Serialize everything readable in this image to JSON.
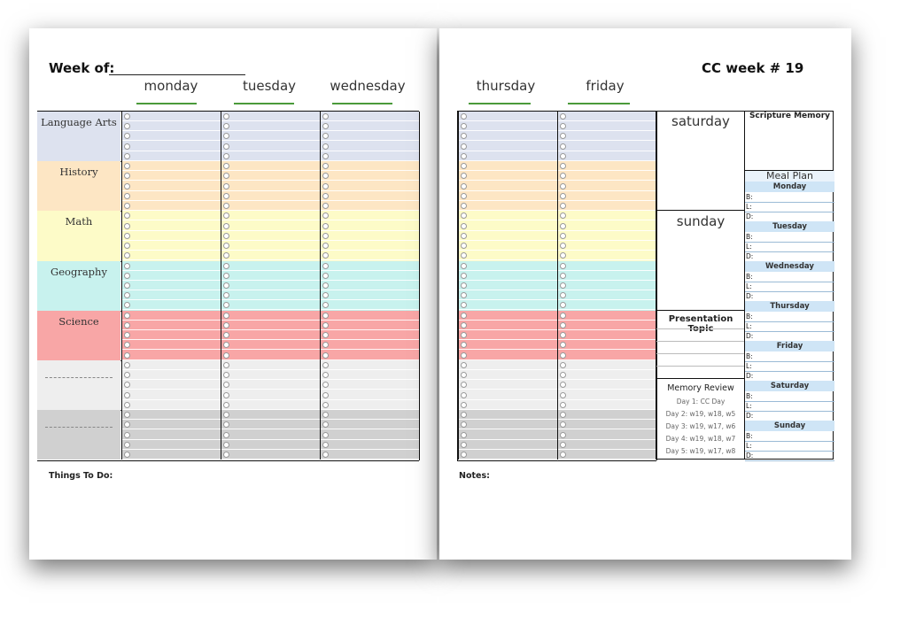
{
  "left_page": {
    "week_of_label": "Week of:",
    "days": [
      "monday",
      "tuesday",
      "wednesday"
    ],
    "subjects": [
      {
        "label": "Language Arts",
        "color": "#dde2ef"
      },
      {
        "label": "History",
        "color": "#fde6c4"
      },
      {
        "label": "Math",
        "color": "#fdfbc8"
      },
      {
        "label": "Geography",
        "color": "#c8f2ee"
      },
      {
        "label": "Science",
        "color": "#f8a6a6"
      },
      {
        "label": "",
        "color": "#eeeeee"
      },
      {
        "label": "",
        "color": "#d0d0d0"
      }
    ],
    "things_to_do_label": "Things To Do:"
  },
  "right_page": {
    "cc_week_label": "CC week # 19",
    "days": [
      "thursday",
      "friday"
    ],
    "saturday_label": "saturday",
    "sunday_label": "sunday",
    "scripture_memory_label": "Scripture Memory",
    "presentation_topic_label": "Presentation Topic",
    "memory_review": {
      "label": "Memory Review",
      "items": [
        "Day 1: CC Day",
        "Day 2: w19, w18, w5",
        "Day 3: w19, w17, w6",
        "Day 4: w19, w18, w7",
        "Day 5: w19, w17, w8"
      ]
    },
    "meal_plan": {
      "label": "Meal Plan",
      "days": [
        "Monday",
        "Tuesday",
        "Wednesday",
        "Thursday",
        "Friday",
        "Saturday",
        "Sunday"
      ],
      "meals": [
        "B:",
        "L:",
        "D:"
      ]
    },
    "notes_label": "Notes:"
  }
}
